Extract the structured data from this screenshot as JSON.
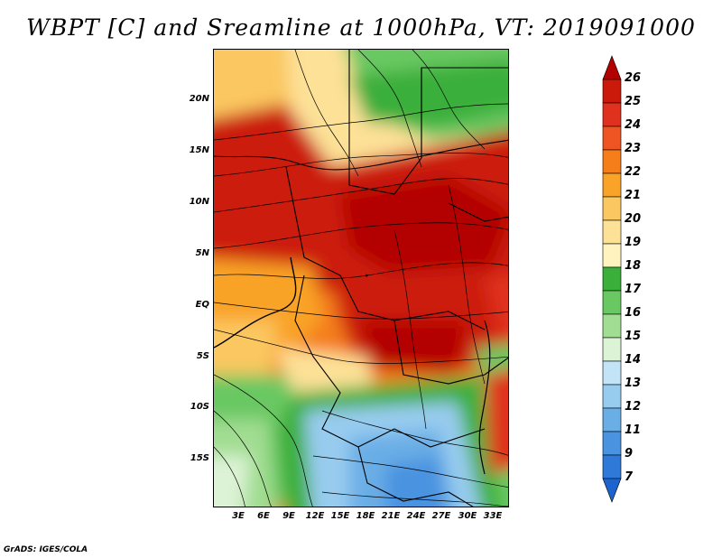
{
  "title": "WBPT [C] and Sreamline at 1000hPa, VT: 2019091000",
  "credit": "GrADS: IGES/COLA",
  "map": {
    "lat_labels": [
      "20N",
      "15N",
      "10N",
      "5N",
      "EQ",
      "5S",
      "10S",
      "15S"
    ],
    "lon_labels": [
      "3E",
      "6E",
      "9E",
      "12E",
      "15E",
      "18E",
      "21E",
      "24E",
      "27E",
      "30E",
      "33E"
    ]
  },
  "colorbar": {
    "labels": [
      "26",
      "25",
      "24",
      "23",
      "22",
      "21",
      "20",
      "19",
      "18",
      "17",
      "16",
      "15",
      "14",
      "13",
      "12",
      "11",
      "9",
      "7"
    ],
    "colors": [
      "#b30000",
      "#cc1a0a",
      "#e0301e",
      "#ee5522",
      "#f57d1a",
      "#f9a328",
      "#fbc761",
      "#fde197",
      "#fff4c0",
      "#3aaf3a",
      "#69c862",
      "#a1dd92",
      "#ddf3d6",
      "#c3e4f7",
      "#98ccef",
      "#6aaee6",
      "#4a93e0",
      "#2f7ad8",
      "#1d63cf"
    ]
  }
}
